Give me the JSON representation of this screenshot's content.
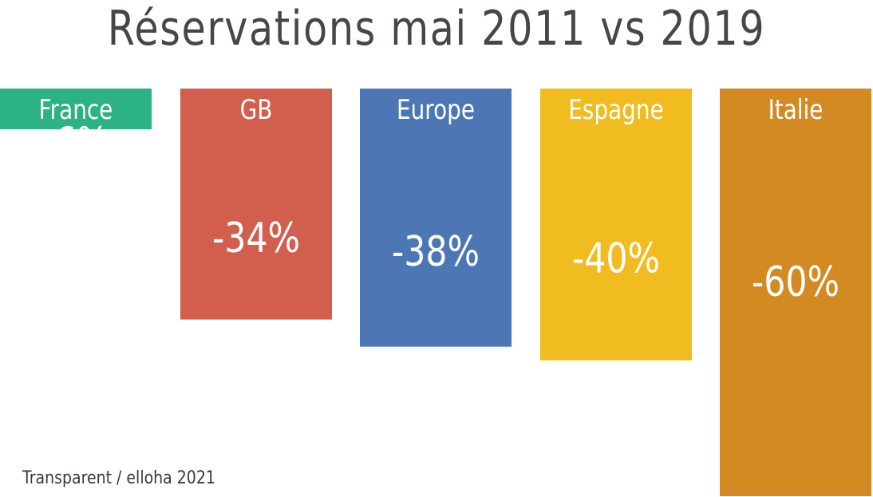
{
  "title": "Réservations mai 2011 vs 2019",
  "source": "Transparent / elloha 2021",
  "chart_data": {
    "type": "bar",
    "title": "Réservations mai 2011 vs 2019",
    "xlabel": "",
    "ylabel": "",
    "categories": [
      "France",
      "GB",
      "Europe",
      "Espagne",
      "Italie"
    ],
    "values": [
      -6,
      -34,
      -38,
      -40,
      -60
    ],
    "value_labels": [
      "-6%",
      "-34%",
      "-38%",
      "-40%",
      "-60%"
    ],
    "colors": [
      "#2db283",
      "#d25f4e",
      "#4c77b4",
      "#f1bc1f",
      "#d48a22"
    ],
    "ylim": [
      -60,
      0
    ],
    "grid": false,
    "legend": "none"
  }
}
